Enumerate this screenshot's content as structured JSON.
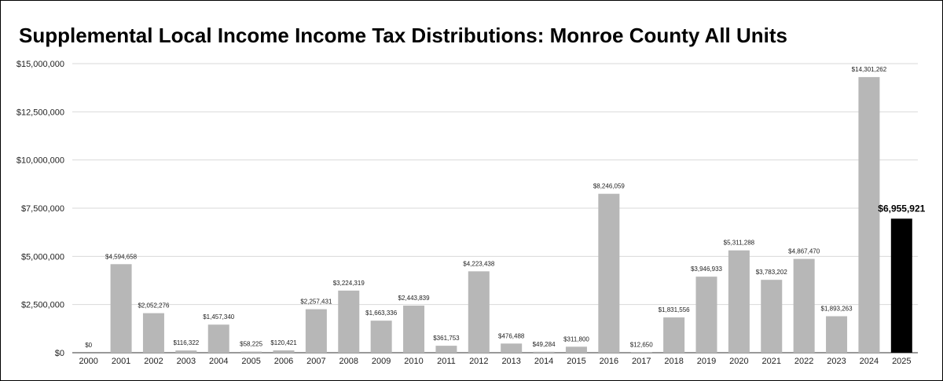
{
  "chart_data": {
    "type": "bar",
    "title": "Supplemental Local Income Income Tax Distributions: Monroe County All Units",
    "xlabel": "",
    "ylabel": "",
    "ylim": [
      0,
      15000000
    ],
    "yticks": [
      0,
      2500000,
      5000000,
      7500000,
      10000000,
      12500000,
      15000000
    ],
    "ytick_labels": [
      "$0",
      "$2,500,000",
      "$5,000,000",
      "$7,500,000",
      "$10,000,000",
      "$12,500,000",
      "$15,000,000"
    ],
    "grid": true,
    "legend": "none",
    "categories": [
      "2000",
      "2001",
      "2002",
      "2003",
      "2004",
      "2005",
      "2006",
      "2007",
      "2008",
      "2009",
      "2010",
      "2011",
      "2012",
      "2013",
      "2014",
      "2015",
      "2016",
      "2017",
      "2018",
      "2019",
      "2020",
      "2021",
      "2022",
      "2023",
      "2024",
      "2025"
    ],
    "values": [
      0,
      4594658,
      2052276,
      116322,
      1457340,
      58225,
      120421,
      2257431,
      3224319,
      1663336,
      2443839,
      361753,
      4223438,
      476488,
      49284,
      311800,
      8246059,
      12650,
      1831556,
      3946933,
      5311288,
      3783202,
      4867470,
      1893263,
      14301262,
      6955921
    ],
    "data_labels": [
      "$0",
      "$4,594,658",
      "$2,052,276",
      "$116,322",
      "$1,457,340",
      "$58,225",
      "$120,421",
      "$2,257,431",
      "$3,224,319",
      "$1,663,336",
      "$2,443,839",
      "$361,753",
      "$4,223,438",
      "$476,488",
      "$49,284",
      "$311,800",
      "$8,246,059",
      "$12,650",
      "$1,831,556",
      "$3,946,933",
      "$5,311,288",
      "$3,783,202",
      "$4,867,470",
      "$1,893,263",
      "$14,301,262",
      "$6,955,921"
    ],
    "highlight_index": 25,
    "colors": {
      "bar": "#b7b7b7",
      "highlight": "#000000",
      "grid": "#d9d9d9",
      "axis": "#333333"
    }
  }
}
